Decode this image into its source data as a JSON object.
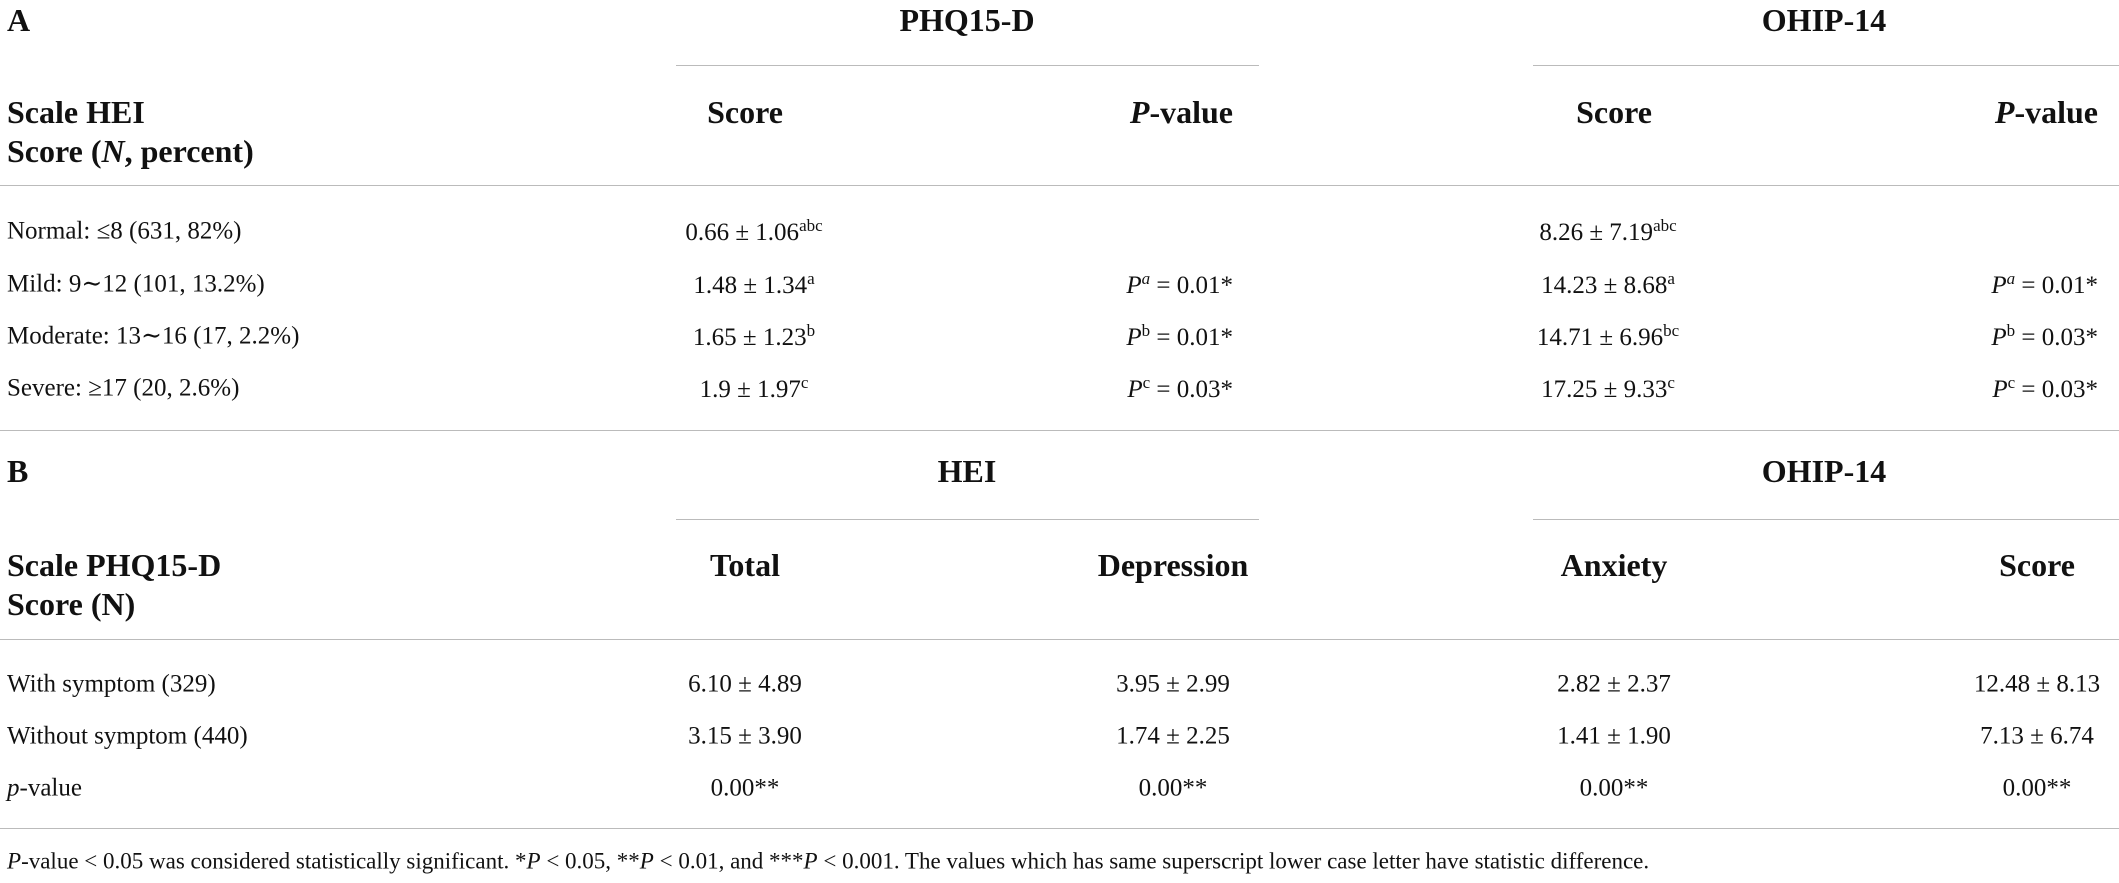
{
  "section_a": {
    "label": "A",
    "groups": [
      "PHQ15-D",
      "OHIP-14"
    ],
    "row_header": [
      "Scale HEI",
      [
        {
          "t": "Score ("
        },
        {
          "t": "N",
          "italic": true
        },
        {
          "t": ", percent)"
        }
      ]
    ],
    "columns": [
      "Score",
      [
        {
          "t": "P",
          "italic": true
        },
        {
          "t": "-value"
        }
      ],
      "Score",
      [
        {
          "t": "P",
          "italic": true
        },
        {
          "t": "-value"
        }
      ]
    ],
    "rows": [
      {
        "label": "Normal: ≤8 (631, 82%)",
        "cells": [
          [
            {
              "t": "0.66 ± 1.06"
            },
            {
              "t": "abc",
              "sup": true
            }
          ],
          null,
          [
            {
              "t": "8.26 ± 7.19"
            },
            {
              "t": "abc",
              "sup": true
            }
          ],
          null
        ]
      },
      {
        "label": "Mild: 9∼12 (101, 13.2%)",
        "cells": [
          [
            {
              "t": "1.48 ± 1.34"
            },
            {
              "t": "a",
              "sup": true
            }
          ],
          [
            {
              "t": "P",
              "italic": true
            },
            {
              "t": "a",
              "sup": true,
              "italic": true
            },
            {
              "t": " = 0.01*"
            }
          ],
          [
            {
              "t": "14.23 ± 8.68"
            },
            {
              "t": "a",
              "sup": true
            }
          ],
          [
            {
              "t": "P",
              "italic": true
            },
            {
              "t": "a",
              "sup": true,
              "italic": true
            },
            {
              "t": " = 0.01*"
            }
          ]
        ]
      },
      {
        "label": "Moderate: 13∼16 (17, 2.2%)",
        "cells": [
          [
            {
              "t": "1.65 ± 1.23"
            },
            {
              "t": "b",
              "sup": true
            }
          ],
          [
            {
              "t": "P",
              "italic": true
            },
            {
              "t": "b",
              "sup": true
            },
            {
              "t": " = 0.01*"
            }
          ],
          [
            {
              "t": "14.71 ± 6.96"
            },
            {
              "t": "bc",
              "sup": true
            }
          ],
          [
            {
              "t": "P",
              "italic": true
            },
            {
              "t": "b",
              "sup": true
            },
            {
              "t": " = 0.03*"
            }
          ]
        ]
      },
      {
        "label": "Severe: ≥17 (20, 2.6%)",
        "cells": [
          [
            {
              "t": "1.9 ± 1.97"
            },
            {
              "t": "c",
              "sup": true
            }
          ],
          [
            {
              "t": "P",
              "italic": true
            },
            {
              "t": "c",
              "sup": true
            },
            {
              "t": " = 0.03*"
            }
          ],
          [
            {
              "t": "17.25 ± 9.33"
            },
            {
              "t": "c",
              "sup": true
            }
          ],
          [
            {
              "t": "P",
              "italic": true
            },
            {
              "t": "c",
              "sup": true
            },
            {
              "t": " = 0.03*"
            }
          ]
        ]
      }
    ]
  },
  "section_b": {
    "label": "B",
    "groups": [
      "HEI",
      "OHIP-14"
    ],
    "row_header": [
      "Scale PHQ15-D",
      "Score (N)"
    ],
    "columns": [
      "Total",
      "Depression",
      "Anxiety",
      "Score"
    ],
    "rows": [
      {
        "label": "With symptom (329)",
        "cells": [
          "6.10 ± 4.89",
          "3.95 ± 2.99",
          "2.82 ± 2.37",
          "12.48 ± 8.13"
        ]
      },
      {
        "label": "Without symptom (440)",
        "cells": [
          "3.15 ± 3.90",
          "1.74 ± 2.25",
          "1.41 ± 1.90",
          "7.13 ± 6.74"
        ]
      },
      {
        "label": [
          {
            "t": "p",
            "italic": true
          },
          {
            "t": "-value"
          }
        ],
        "cells": [
          "0.00**",
          "0.00**",
          "0.00**",
          "0.00**"
        ]
      }
    ]
  },
  "footnote": [
    {
      "t": "P",
      "italic": true
    },
    {
      "t": "-value < 0.05 was considered statistically significant. *"
    },
    {
      "t": "P",
      "italic": true
    },
    {
      "t": " < 0.05, **"
    },
    {
      "t": "P",
      "italic": true
    },
    {
      "t": " < 0.01, and ***"
    },
    {
      "t": "P",
      "italic": true
    },
    {
      "t": " < 0.001. The values which has same superscript lower case letter have statistic difference."
    }
  ]
}
